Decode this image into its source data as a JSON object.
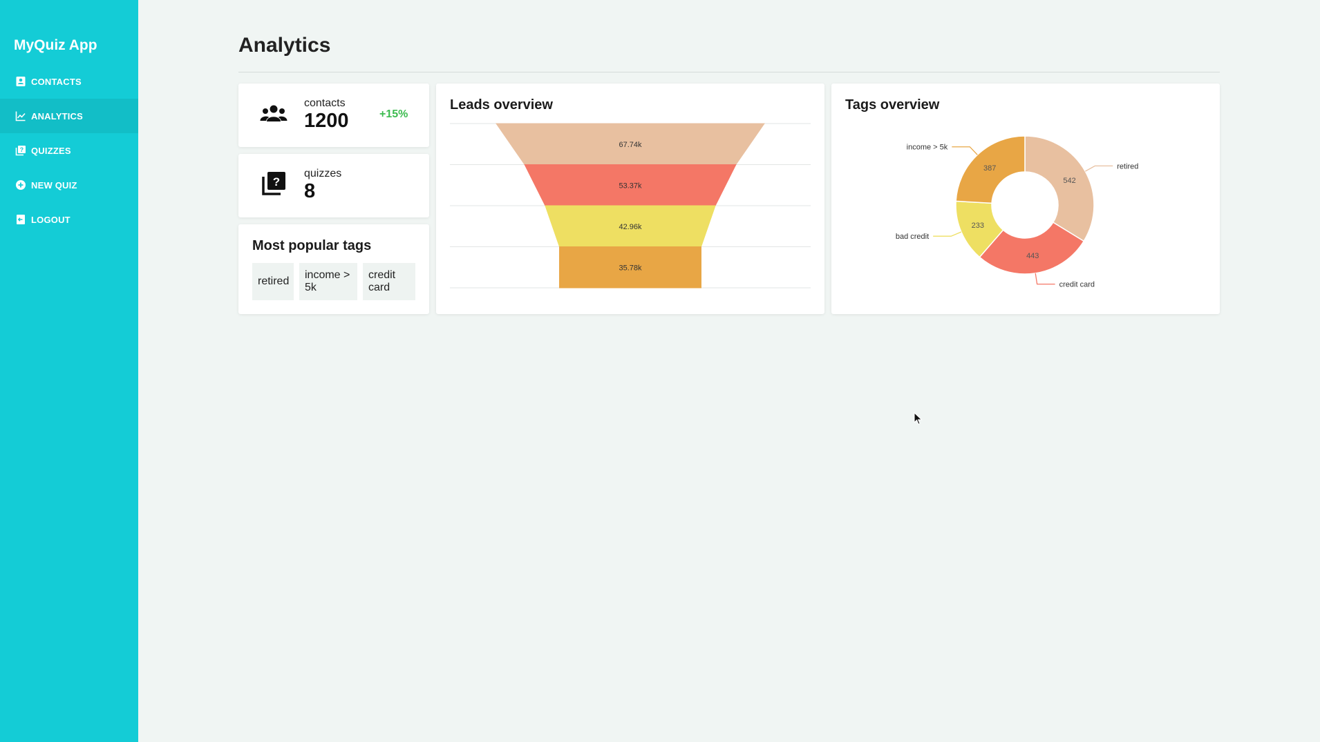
{
  "app": {
    "brand": "MyQuiz App"
  },
  "sidebar": {
    "items": [
      {
        "label": "CONTACTS",
        "icon": "contacts-icon",
        "active": false
      },
      {
        "label": "ANALYTICS",
        "icon": "analytics-icon",
        "active": true
      },
      {
        "label": "QUIZZES",
        "icon": "quizzes-icon",
        "active": false
      },
      {
        "label": "NEW QUIZ",
        "icon": "plus-circle-icon",
        "active": false
      },
      {
        "label": "LOGOUT",
        "icon": "logout-icon",
        "active": false
      }
    ]
  },
  "page": {
    "title": "Analytics"
  },
  "stats": {
    "contacts": {
      "label": "contacts",
      "value": "1200",
      "delta": "+15%",
      "icon": "users-icon"
    },
    "quizzes": {
      "label": "quizzes",
      "value": "8",
      "icon": "quiz-library-icon"
    }
  },
  "popular_tags": {
    "title": "Most popular tags",
    "tags": [
      "retired",
      "income > 5k",
      "credit card"
    ]
  },
  "colors": {
    "sidebar": "#14ccd6",
    "sidebar_active": "#12bec7",
    "delta_positive": "#3dbb50",
    "series": [
      "#e8c0a0",
      "#f47766",
      "#eedf62",
      "#e8a645"
    ]
  },
  "chart_data": [
    {
      "type": "funnel",
      "title": "Leads overview",
      "categories": [
        "",
        "",
        "",
        ""
      ],
      "values": [
        67740,
        53370,
        42960,
        35780
      ],
      "value_labels": [
        "67.74k",
        "53.37k",
        "42.96k",
        "35.78k"
      ],
      "colors": [
        "#e8c0a0",
        "#f47766",
        "#eedf62",
        "#e8a645"
      ],
      "grid": true
    },
    {
      "type": "pie",
      "donut": true,
      "title": "Tags overview",
      "categories": [
        "retired",
        "credit card",
        "bad credit",
        "income > 5k"
      ],
      "values": [
        542,
        443,
        233,
        387
      ],
      "colors": [
        "#e8c0a0",
        "#f47766",
        "#eedf62",
        "#e8a645"
      ]
    }
  ]
}
